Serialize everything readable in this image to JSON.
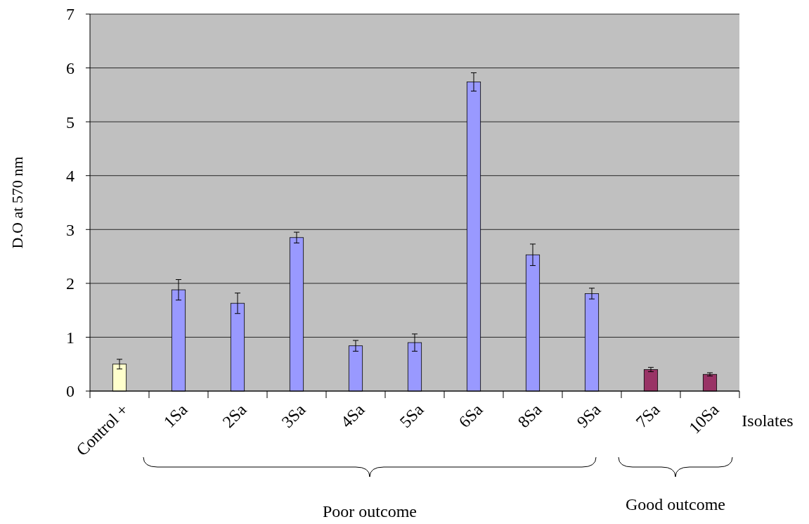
{
  "chart_data": {
    "type": "bar",
    "categories": [
      "Control +",
      "1Sa",
      "2Sa",
      "3Sa",
      "4Sa",
      "5Sa",
      "6Sa",
      "8Sa",
      "9Sa",
      "7Sa",
      "10Sa"
    ],
    "values": [
      0.5,
      1.88,
      1.63,
      2.85,
      0.84,
      0.9,
      5.74,
      2.53,
      1.81,
      0.4,
      0.31
    ],
    "errors": [
      0.09,
      0.19,
      0.19,
      0.1,
      0.1,
      0.16,
      0.17,
      0.2,
      0.1,
      0.04,
      0.03
    ],
    "colors": [
      "#ffffcc",
      "#9999ff",
      "#9999ff",
      "#9999ff",
      "#9999ff",
      "#9999ff",
      "#9999ff",
      "#9999ff",
      "#9999ff",
      "#993366",
      "#993366"
    ],
    "xlabel": "Isolates",
    "ylabel": "D.O at 570 nm",
    "ylim": [
      0,
      7
    ],
    "yticks": [
      0,
      1,
      2,
      3,
      4,
      5,
      6,
      7
    ],
    "grid": "y",
    "annotations": [
      "Poor outcome",
      "Good outcome"
    ]
  }
}
